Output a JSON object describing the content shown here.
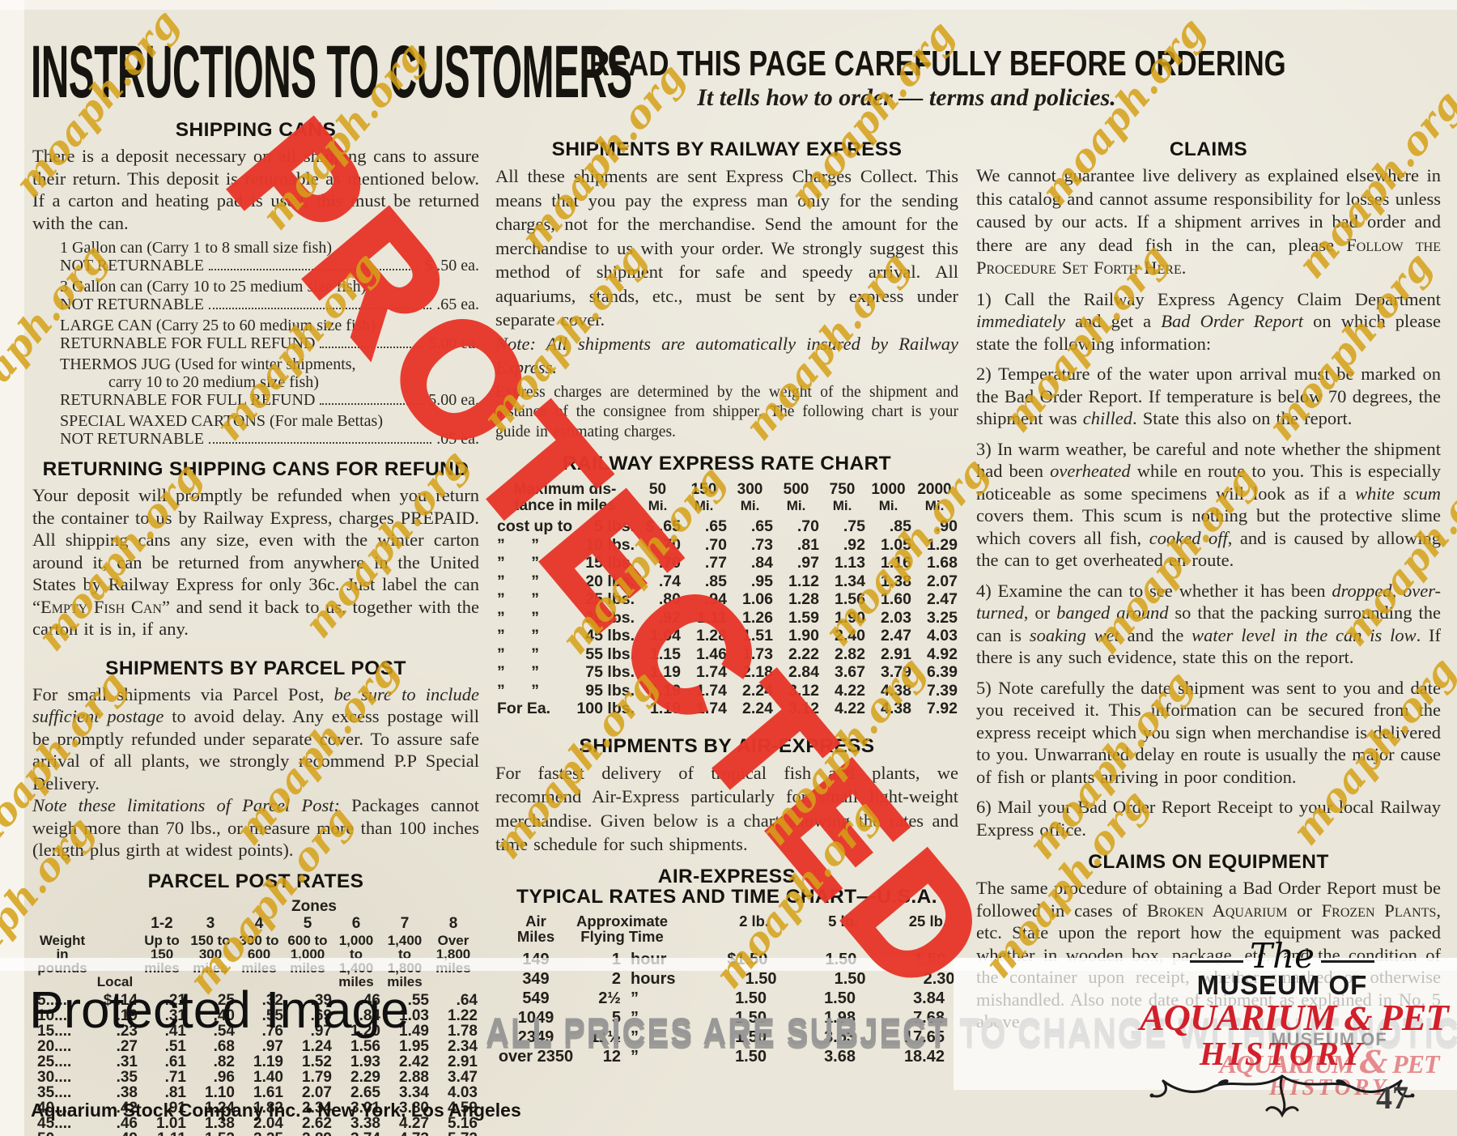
{
  "header": {
    "title": "INSTRUCTIONS TO CUSTOMERS",
    "banner": "READ THIS PAGE CAREFULLY BEFORE ORDERING",
    "subtitle": "It tells how to order — terms and policies."
  },
  "watermark": {
    "protected": "PROTECTED",
    "tile": "moaph.org",
    "label": "Protected Image",
    "red": "#e7382b",
    "gold": "#d5a016"
  },
  "left": {
    "shipping_cans_heading": "SHIPPING CANS",
    "shipping_cans_para": "There is a deposit necessary on all shipping cans to assure their return. This deposit is returnable as mentioned below. If a carton and heating pad is used, this must be returned with the can.",
    "cans": [
      {
        "name": "1 Gallon can (Carry 1 to 8 small size fish)",
        "name2": "",
        "status": "NOT RETURNABLE",
        "price": "$ .50 ea."
      },
      {
        "name": "3 Gallon can (Carry 10 to 25 medium size fish)",
        "name2": "",
        "status": "NOT RETURNABLE",
        "price": ".65 ea."
      },
      {
        "name": "LARGE CAN (Carry 25 to 60 medium size fish)",
        "name2": "",
        "status": "RETURNABLE FOR FULL REFUND",
        "price": "5.00 ea."
      },
      {
        "name": "THERMOS JUG (Used for winter shipments,",
        "name2": "carry 10 to 20 medium size fish)",
        "status": "RETURNABLE FOR FULL REFUND",
        "price": "5.00 ea."
      },
      {
        "name": "SPECIAL WAXED CARTONS (For male Bettas)",
        "name2": "",
        "status": "NOT RETURNABLE",
        "price": ".05 ea."
      }
    ],
    "returning_heading": "RETURNING SHIPPING CANS FOR REFUND",
    "returning_para": "Your deposit will promptly be refunded when you return the container to us by Railway Express, charges PREPAID. All shipping cans any size, even with the winter carton around it, can be returned from anywhere in the United States by Railway Express for only 36c. Just label the can “<sc>Empty Fish Can</sc>” and send it back to us, together with the carton it is in, if any.",
    "parcel_heading": "SHIPMENTS BY PARCEL POST",
    "parcel_para": "For small shipments via Parcel Post, <i>be sure to include sufficient postage</i> to avoid delay. Any excess postage will be promptly refunded under separate cover. To assure safe arrival of all plants, we strongly recommend P.P Special Delivery.",
    "parcel_note": "<i>Note these limitations of Parcel Post:</i> Packages cannot weigh more than 70 lbs., or measure more than 100 inches (length plus girth at widest points).",
    "rates": {
      "heading": "PARCEL POST RATES",
      "zones_label": "Zones",
      "col_weight": "Weight in pounds",
      "col_local": "Local",
      "zones": [
        {
          "n": "1-2",
          "r": "Up to 150 miles"
        },
        {
          "n": "3",
          "r": "150 to 300 miles"
        },
        {
          "n": "4",
          "r": "300 to 600 miles"
        },
        {
          "n": "5",
          "r": "600 to 1,000 miles"
        },
        {
          "n": "6",
          "r": "1,000 to 1,400 miles"
        },
        {
          "n": "7",
          "r": "1,400 to 1,800 miles"
        },
        {
          "n": "8",
          "r": "Over 1,800 miles"
        }
      ],
      "rows": [
        [
          "5.....",
          "$ .14",
          ".21",
          ".25",
          ".32",
          ".39",
          ".46",
          ".55",
          ".64"
        ],
        [
          "10....",
          ".19",
          ".31",
          ".40",
          ".55",
          ".69",
          ".84",
          "1.03",
          "1.22"
        ],
        [
          "15....",
          ".23",
          ".41",
          ".54",
          ".76",
          ".97",
          "1.20",
          "1.49",
          "1.78"
        ],
        [
          "20....",
          ".27",
          ".51",
          ".68",
          ".97",
          "1.24",
          "1.56",
          "1.95",
          "2.34"
        ],
        [
          "25....",
          ".31",
          ".61",
          ".82",
          "1.19",
          "1.52",
          "1.93",
          "2.42",
          "2.91"
        ],
        [
          "30....",
          ".35",
          ".71",
          ".96",
          "1.40",
          "1.79",
          "2.29",
          "2.88",
          "3.47"
        ],
        [
          "35....",
          ".38",
          ".81",
          "1.10",
          "1.61",
          "2.07",
          "2.65",
          "3.34",
          "4.03"
        ],
        [
          "40....",
          ".42",
          ".91",
          "1.24",
          "1.82",
          "2.34",
          "3.01",
          "3.80",
          "4.59"
        ],
        [
          "45....",
          ".46",
          "1.01",
          "1.38",
          "2.04",
          "2.62",
          "3.38",
          "4.27",
          "5.16"
        ],
        [
          "50....",
          ".49",
          "1.11",
          "1.52",
          "2.25",
          "2.89",
          "3.74",
          "4.73",
          "5.72"
        ]
      ]
    }
  },
  "middle": {
    "railway_heading": "SHIPMENTS BY RAILWAY EXPRESS",
    "railway_para": "All these shipments are sent Express Charges Collect. This means that you pay the express man only for the sending charges, not for the merchandise. Send the amount for the merchandise to us with your order. We strongly suggest this method of shipment for safe and speedy arrival. All aquariums, stands, etc., must be sent by express under separate cover.",
    "railway_note": "<i>Note: All shipments are automatically insured by Railway Express.</i>",
    "railway_small": "Express charges are determined by the weight of the shipment and distance of the consignee from shipper. The following chart is your guide in estimating charges.",
    "chart": {
      "heading": "RAILWAY EXPRESS RATE CHART",
      "label1": "Maximum dis-",
      "label2": "tance in miles",
      "cols": [
        {
          "n": "50",
          "u": "Mi."
        },
        {
          "n": "150",
          "u": "Mi."
        },
        {
          "n": "300",
          "u": "Mi."
        },
        {
          "n": "500",
          "u": "Mi."
        },
        {
          "n": "750",
          "u": "Mi."
        },
        {
          "n": "1000",
          "u": "Mi."
        },
        {
          "n": "2000",
          "u": "Mi."
        }
      ],
      "rows": [
        [
          "cost up to",
          "5 lbs.",
          "$ .65",
          ".65",
          ".65",
          ".70",
          ".75",
          ".85",
          ".90"
        ],
        [
          "”      ”",
          "10 lbs.",
          ".70",
          ".70",
          ".73",
          ".81",
          ".92",
          "1.05",
          "1.29"
        ],
        [
          "”      ”",
          "15 lbs.",
          ".70",
          ".77",
          ".84",
          ".97",
          "1.13",
          "1.16",
          "1.68"
        ],
        [
          "”      ”",
          "20 lbs.",
          ".74",
          ".85",
          ".95",
          "1.12",
          "1.34",
          "1.38",
          "2.07"
        ],
        [
          "”      ”",
          "25 lbs.",
          ".80",
          ".94",
          "1.06",
          "1.28",
          "1.56",
          "1.60",
          "2.47"
        ],
        [
          "”      ”",
          "35 lbs.",
          ".92",
          "1.11",
          "1.26",
          "1.59",
          "1.90",
          "2.03",
          "3.25"
        ],
        [
          "”      ”",
          "45 lbs.",
          "1.04",
          "1.28",
          "1.51",
          "1.90",
          "2.40",
          "2.47",
          "4.03"
        ],
        [
          "”      ”",
          "55 lbs.",
          "1.15",
          "1.46",
          "1.73",
          "2.22",
          "2.82",
          "2.91",
          "4.92"
        ],
        [
          "”      ”",
          "75 lbs.",
          "1.19",
          "1.74",
          "2.18",
          "2.84",
          "3.67",
          "3.79",
          "6.39"
        ],
        [
          "”      ”",
          "95 lbs.",
          "1.19",
          "1.74",
          "2.24",
          "3.12",
          "4.22",
          "4.38",
          "7.39"
        ],
        [
          "For Ea.",
          "100 lbs.",
          "1.19",
          "1.74",
          "2.24",
          "3.12",
          "4.22",
          "4.38",
          "7.92"
        ]
      ]
    },
    "air_heading": "SHIPMENTS BY AIR-EXPRESS",
    "air_para": "For fastest delivery of tropical fish and plants, we recommend Air-Express particularly for small light-weight merchandise. Given below is a chart showing the rates and time schedule for such shipments.",
    "air1": "AIR-EXPRESS",
    "air2": "TYPICAL RATES AND TIME CHART—U.S.A.",
    "air_chart": {
      "col_miles1": "Air",
      "col_miles2": "Miles",
      "col_time1": "Approximate",
      "col_time2": "Flying Time",
      "col_2lb": "2 lb.",
      "col_5lb": "5 lb.",
      "col_25lb": "25 lb.",
      "rows": [
        [
          "149",
          "1",
          "hour",
          "$1.50",
          "1.50",
          "1.50"
        ],
        [
          "349",
          "2",
          "hours",
          "1.50",
          "1.50",
          "2.30"
        ],
        [
          "549",
          "2½",
          "”",
          "1.50",
          "1.50",
          "3.84"
        ],
        [
          "1049",
          "5",
          "”",
          "1.50",
          "1.98",
          "7.68"
        ],
        [
          "2349",
          "11½",
          "”",
          "1.50",
          "3.53",
          "17.65"
        ],
        [
          "over 2350",
          "12",
          "”",
          "1.50",
          "3.68",
          "18.42"
        ]
      ]
    }
  },
  "right": {
    "claims_heading": "CLAIMS",
    "claims_para": "We cannot guarantee live delivery as explained elsewhere in this catalog and cannot assume responsibility for losses unless caused by our acts. If a shipment arrives in bad order and there are any dead fish in the can, please <sc>Follow the Procedure Set Forth Here</sc>.",
    "items": [
      "1) Call the Railway Express Agency Claim Department <i>immediately</i> and get a <i>Bad Order Report</i> on which please state the following information:",
      "2) Temperature of the water upon arrival must be marked on the Bad Order Report. If temperature is below 70 degrees, the shipment was <i>chilled</i>. State this also on the report.",
      "3) In warm weather, be careful and note whether the shipment had been <i>overheated</i> while en route to you. This is especially noticeable as some specimens will look as if a <i>white scum</i> covers them. This scum is nothing but the protective slime which covers all fish, <i>cooked off</i>, and is caused by allowing the can to get overheated en route.",
      "4) Examine the can to see whether it has been <i>dropped</i>, <i>over-turned</i>, or <i>banged around</i> so that the packing surrounding the can is <i>soaking wet</i> and the <i>water level in the can is low</i>. If there is any such evidence, state this on the report.",
      "5) Note carefully the date shipment was sent to you and date you received it. This information can be secured from the express receipt which you sign when merchandise is delivered to you. Unwarranted delay en route is usually the major cause of fish or plants arriving in poor condition.",
      "6) Mail your Bad Order Report Receipt to your local Railway Express office."
    ],
    "equipment_heading": "CLAIMS ON EQUIPMENT",
    "equipment_para": "The same procedure of obtaining a Bad Order Report must be followed in cases of <sc>Broken Aquarium</sc> or <sc>Frozen Plants</sc>, etc. State upon the report how the equipment was packed whether in wooden box, package, etc., and the condition of the container upon receipt, whether smashed or otherwise mishandled. Also note date of shipment as explained in No. 5 above."
  },
  "footer": {
    "notice": "ALL PRICES ARE SUBJECT TO CHANGE WITHOUT NOTICE",
    "company": "Aquarium Stock Company Inc. • New York, Los Angeles",
    "page_number": "47"
  },
  "logo": {
    "the": "The",
    "museum": "MUSEUM OF",
    "aquarium": "AQUARIUM",
    "amp": "&",
    "pet": "PET",
    "history": "HISTORY"
  }
}
